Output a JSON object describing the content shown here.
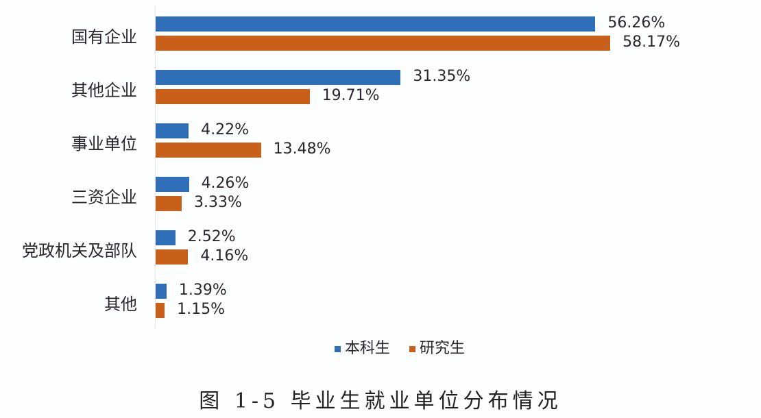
{
  "chart_data": {
    "type": "bar",
    "orientation": "horizontal",
    "title": "图 1-5 毕业生就业单位分布情况",
    "xlabel": "",
    "ylabel": "",
    "categories": [
      "国有企业",
      "其他企业",
      "事业单位",
      "三资企业",
      "党政机关及部队",
      "其他"
    ],
    "series": [
      {
        "name": "本科生",
        "color": "#2e6fb8",
        "values": [
          56.26,
          31.35,
          4.22,
          4.26,
          2.52,
          1.39
        ],
        "labels": [
          "56.26%",
          "31.35%",
          "4.22%",
          "4.26%",
          "2.52%",
          "1.39%"
        ]
      },
      {
        "name": "研究生",
        "color": "#c9601a",
        "values": [
          58.17,
          19.71,
          13.48,
          3.33,
          4.16,
          1.15
        ],
        "labels": [
          "58.17%",
          "19.71%",
          "13.48%",
          "3.33%",
          "4.16%",
          "1.15%"
        ]
      }
    ],
    "grid": false,
    "legend_position": "bottom",
    "units": "%"
  },
  "legend": {
    "items": [
      "本科生",
      "研究生"
    ]
  },
  "caption": "图 1-5 毕业生就业单位分布情况"
}
